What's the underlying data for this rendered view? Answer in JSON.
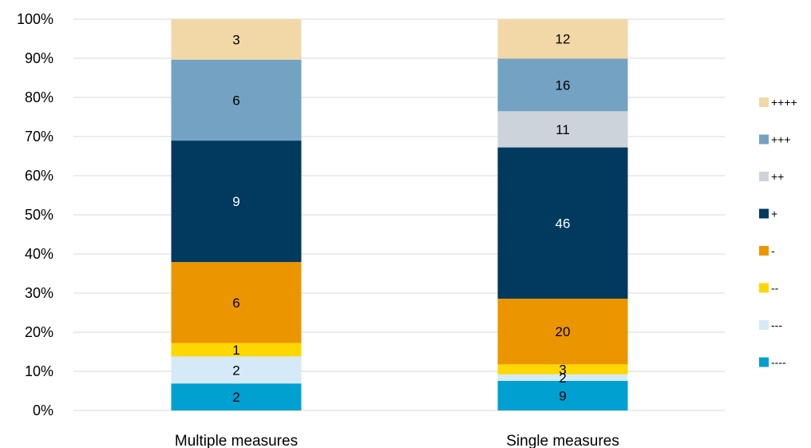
{
  "chart_data": {
    "type": "bar",
    "stacked": "percent",
    "categories": [
      "Multiple measures",
      "Single measures"
    ],
    "series": [
      {
        "name": "----",
        "color": "#00A0D1",
        "values": [
          2,
          9
        ],
        "label_color": "#000000"
      },
      {
        "name": "---",
        "color": "#D5EAF8",
        "values": [
          2,
          2
        ],
        "label_color": "#000000"
      },
      {
        "name": "--",
        "color": "#FFD700",
        "values": [
          1,
          3
        ],
        "label_color": "#000000"
      },
      {
        "name": "-",
        "color": "#EB9600",
        "values": [
          6,
          20
        ],
        "label_color": "#000000"
      },
      {
        "name": "+",
        "color": "#003A5F",
        "values": [
          9,
          46
        ],
        "label_color": "#FFFFFF"
      },
      {
        "name": "++",
        "color": "#CDD3DA",
        "values": [
          0,
          11
        ],
        "label_color": "#000000"
      },
      {
        "name": "+++",
        "color": "#74A2C3",
        "values": [
          6,
          16
        ],
        "label_color": "#000000"
      },
      {
        "name": "++++",
        "color": "#F2D8A7",
        "values": [
          3,
          12
        ],
        "label_color": "#000000"
      }
    ],
    "y_ticks": [
      "0%",
      "10%",
      "20%",
      "30%",
      "40%",
      "50%",
      "60%",
      "70%",
      "80%",
      "90%",
      "100%"
    ],
    "ylim": [
      0,
      100
    ],
    "grid": true,
    "legend_position": "right",
    "legend_order": [
      "++++",
      "+++",
      "++",
      "+",
      "-",
      "--",
      "---",
      "----"
    ]
  }
}
